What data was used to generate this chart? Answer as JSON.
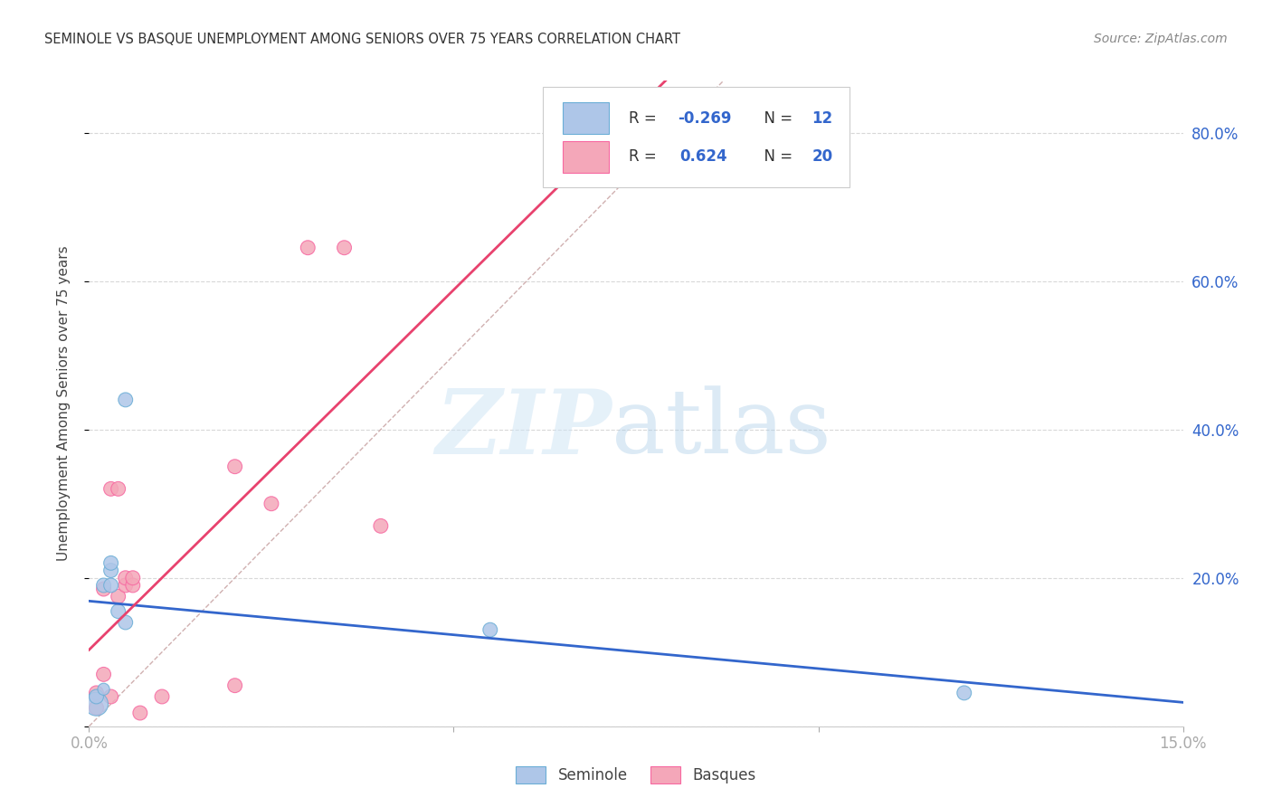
{
  "title": "SEMINOLE VS BASQUE UNEMPLOYMENT AMONG SENIORS OVER 75 YEARS CORRELATION CHART",
  "source": "Source: ZipAtlas.com",
  "ylabel": "Unemployment Among Seniors over 75 years",
  "xlim": [
    0.0,
    0.15
  ],
  "ylim": [
    0.0,
    0.87
  ],
  "seminole_x": [
    0.001,
    0.001,
    0.002,
    0.002,
    0.003,
    0.003,
    0.003,
    0.004,
    0.005,
    0.005,
    0.055,
    0.12
  ],
  "seminole_y": [
    0.03,
    0.04,
    0.05,
    0.19,
    0.19,
    0.21,
    0.22,
    0.155,
    0.14,
    0.44,
    0.13,
    0.045
  ],
  "seminole_sizes": [
    350,
    130,
    90,
    130,
    130,
    130,
    130,
    130,
    130,
    130,
    130,
    130
  ],
  "basque_x": [
    0.001,
    0.001,
    0.002,
    0.002,
    0.003,
    0.003,
    0.004,
    0.004,
    0.005,
    0.005,
    0.006,
    0.006,
    0.007,
    0.01,
    0.02,
    0.02,
    0.025,
    0.03,
    0.035,
    0.04
  ],
  "basque_y": [
    0.025,
    0.045,
    0.07,
    0.185,
    0.04,
    0.32,
    0.32,
    0.175,
    0.19,
    0.2,
    0.19,
    0.2,
    0.018,
    0.04,
    0.055,
    0.35,
    0.3,
    0.645,
    0.645,
    0.27
  ],
  "basque_sizes": [
    130,
    130,
    130,
    130,
    130,
    130,
    130,
    130,
    130,
    130,
    130,
    130,
    130,
    130,
    130,
    130,
    130,
    130,
    130,
    130
  ],
  "seminole_color": "#aec6e8",
  "basque_color": "#f4a7b9",
  "seminole_edge": "#6baed6",
  "basque_edge": "#f768a1",
  "trend_seminole_color": "#3366cc",
  "trend_basque_color": "#e8426e",
  "diag_line_color": "#d0b0b0",
  "R_seminole": -0.269,
  "N_seminole": 12,
  "R_basque": 0.624,
  "N_basque": 20,
  "background_color": "#ffffff",
  "grid_color": "#d8d8d8",
  "legend_text_color": "#333333",
  "legend_num_color": "#3366cc",
  "axis_num_color": "#3366cc"
}
